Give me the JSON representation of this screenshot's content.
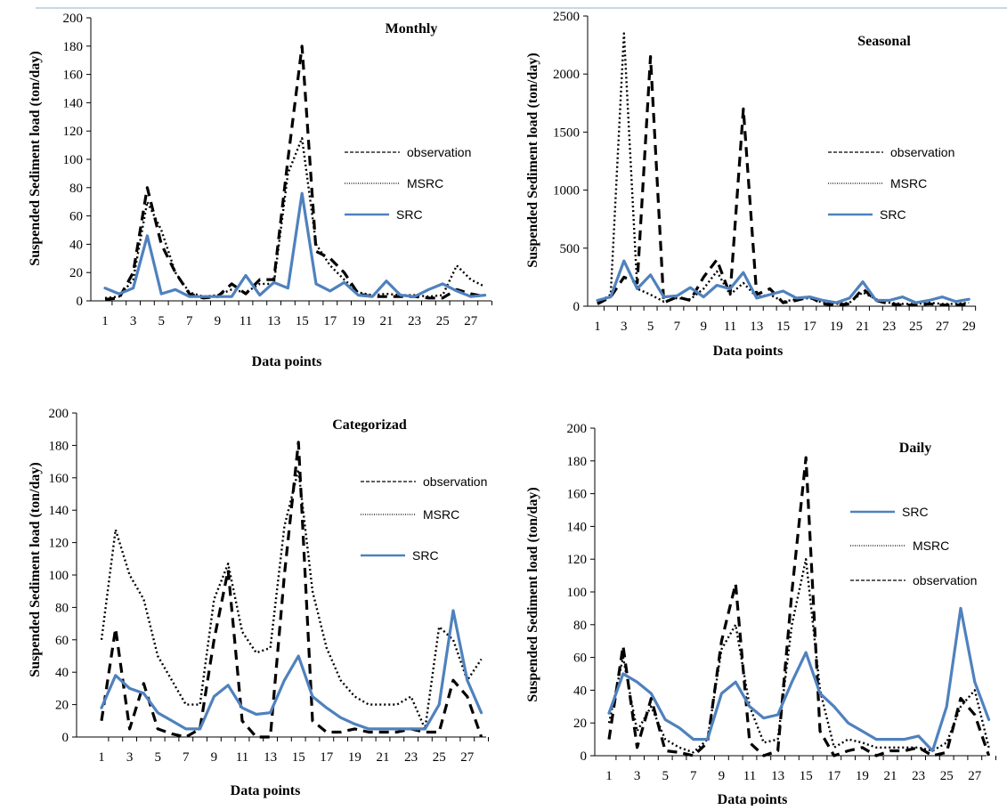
{
  "colors": {
    "observation": "#000000",
    "msrc": "#000000",
    "src": "#4f81bd"
  },
  "chart_data": [
    {
      "type": "line",
      "title": "Monthly",
      "xlabel": "Data points",
      "ylabel": "Suspended Sediment load (ton/day)",
      "ylim": [
        0,
        200
      ],
      "yticks": [
        0,
        20,
        40,
        60,
        80,
        100,
        120,
        140,
        160,
        180,
        200
      ],
      "xticks": [
        1,
        3,
        5,
        7,
        9,
        11,
        13,
        15,
        17,
        19,
        21,
        23,
        25,
        27
      ],
      "x": [
        1,
        2,
        3,
        4,
        5,
        6,
        7,
        8,
        9,
        10,
        11,
        12,
        13,
        14,
        15,
        16,
        17,
        18,
        19,
        20,
        21,
        22,
        23,
        24,
        25,
        26,
        27,
        28
      ],
      "legend": [
        "observation",
        "MSRC",
        "SRC"
      ],
      "series": [
        {
          "name": "observation",
          "style": "dashed",
          "values": [
            1,
            2,
            20,
            80,
            40,
            20,
            5,
            2,
            3,
            12,
            5,
            15,
            15,
            100,
            180,
            35,
            30,
            20,
            5,
            3,
            3,
            3,
            3,
            2,
            2,
            8,
            5,
            3
          ]
        },
        {
          "name": "MSRC",
          "style": "dotted",
          "values": [
            2,
            3,
            15,
            70,
            50,
            20,
            6,
            3,
            4,
            8,
            6,
            12,
            12,
            90,
            115,
            40,
            25,
            15,
            6,
            4,
            5,
            4,
            4,
            3,
            4,
            25,
            15,
            10
          ]
        },
        {
          "name": "SRC",
          "style": "solid",
          "values": [
            9,
            5,
            9,
            46,
            5,
            8,
            3,
            3,
            3,
            3,
            18,
            4,
            13,
            9,
            76,
            12,
            7,
            13,
            4,
            3,
            14,
            4,
            3,
            8,
            12,
            7,
            3,
            4
          ]
        }
      ]
    },
    {
      "type": "line",
      "title": "Seasonal",
      "xlabel": "Data points",
      "ylabel": "Suspended Sediment load (ton/day)",
      "ylim": [
        0,
        2500
      ],
      "yticks": [
        0,
        500,
        1000,
        1500,
        2000,
        2500
      ],
      "xticks": [
        1,
        3,
        5,
        7,
        9,
        11,
        13,
        15,
        17,
        19,
        21,
        23,
        25,
        27,
        29
      ],
      "x": [
        1,
        2,
        3,
        4,
        5,
        6,
        7,
        8,
        9,
        10,
        11,
        12,
        13,
        14,
        15,
        16,
        17,
        18,
        19,
        20,
        21,
        22,
        23,
        24,
        25,
        26,
        27,
        28,
        29
      ],
      "legend": [
        "observation",
        "MSRC",
        "SRC"
      ],
      "series": [
        {
          "name": "observation",
          "style": "dashed",
          "values": [
            20,
            80,
            250,
            200,
            2150,
            30,
            80,
            50,
            250,
            400,
            100,
            1700,
            100,
            150,
            30,
            50,
            80,
            20,
            10,
            20,
            150,
            50,
            20,
            10,
            10,
            20,
            10,
            10,
            20
          ]
        },
        {
          "name": "MSRC",
          "style": "dotted",
          "values": [
            30,
            100,
            2350,
            150,
            100,
            40,
            70,
            60,
            150,
            300,
            100,
            200,
            80,
            100,
            40,
            60,
            70,
            30,
            20,
            30,
            120,
            60,
            30,
            20,
            20,
            30,
            20,
            20,
            30
          ]
        },
        {
          "name": "SRC",
          "style": "solid",
          "values": [
            50,
            80,
            390,
            150,
            270,
            80,
            90,
            160,
            80,
            180,
            150,
            290,
            70,
            100,
            130,
            70,
            80,
            50,
            30,
            70,
            210,
            50,
            50,
            80,
            30,
            50,
            80,
            40,
            60
          ]
        }
      ]
    },
    {
      "type": "line",
      "title": "Categorizad",
      "xlabel": "Data points",
      "ylabel": "Suspended Sediment load (ton/day)",
      "ylim": [
        0,
        200
      ],
      "yticks": [
        0,
        20,
        40,
        60,
        80,
        100,
        120,
        140,
        160,
        180,
        200
      ],
      "xticks": [
        1,
        3,
        5,
        7,
        9,
        11,
        13,
        15,
        17,
        19,
        21,
        23,
        25,
        27
      ],
      "x": [
        1,
        2,
        3,
        4,
        5,
        6,
        7,
        8,
        9,
        10,
        11,
        12,
        13,
        14,
        15,
        16,
        17,
        18,
        19,
        20,
        21,
        22,
        23,
        24,
        25,
        26,
        27,
        28
      ],
      "legend": [
        "observation",
        "MSRC",
        "SRC"
      ],
      "series": [
        {
          "name": "observation",
          "style": "dashed",
          "values": [
            10,
            67,
            5,
            33,
            5,
            2,
            0,
            5,
            60,
            103,
            10,
            0,
            0,
            100,
            182,
            10,
            3,
            3,
            5,
            3,
            3,
            3,
            5,
            3,
            3,
            35,
            25,
            0
          ]
        },
        {
          "name": "MSRC",
          "style": "dotted",
          "values": [
            60,
            128,
            100,
            85,
            50,
            35,
            20,
            20,
            85,
            107,
            65,
            52,
            55,
            130,
            165,
            90,
            55,
            35,
            25,
            20,
            20,
            20,
            25,
            5,
            68,
            60,
            35,
            48
          ]
        },
        {
          "name": "SRC",
          "style": "solid",
          "values": [
            18,
            38,
            30,
            27,
            15,
            10,
            5,
            5,
            25,
            32,
            18,
            14,
            15,
            35,
            50,
            25,
            18,
            12,
            8,
            5,
            5,
            5,
            5,
            5,
            20,
            78,
            35,
            15
          ]
        }
      ]
    },
    {
      "type": "line",
      "title": "Daily",
      "xlabel": "Data points",
      "ylabel": "Suspended Sediment load (ton/day)",
      "ylim": [
        0,
        200
      ],
      "yticks": [
        0,
        20,
        40,
        60,
        80,
        100,
        120,
        140,
        160,
        180,
        200
      ],
      "xticks": [
        1,
        3,
        5,
        7,
        9,
        11,
        13,
        15,
        17,
        19,
        21,
        23,
        25,
        27
      ],
      "x": [
        1,
        2,
        3,
        4,
        5,
        6,
        7,
        8,
        9,
        10,
        11,
        12,
        13,
        14,
        15,
        16,
        17,
        18,
        19,
        20,
        21,
        22,
        23,
        24,
        25,
        26,
        27,
        28
      ],
      "legend": [
        "SRC",
        "MSRC",
        "observation"
      ],
      "series": [
        {
          "name": "SRC",
          "style": "solid",
          "values": [
            26,
            50,
            45,
            38,
            22,
            17,
            10,
            10,
            38,
            45,
            30,
            23,
            25,
            45,
            63,
            38,
            30,
            20,
            15,
            10,
            10,
            10,
            12,
            3,
            30,
            90,
            45,
            22
          ]
        },
        {
          "name": "MSRC",
          "style": "dotted",
          "values": [
            20,
            60,
            15,
            30,
            10,
            5,
            2,
            10,
            65,
            80,
            30,
            8,
            10,
            80,
            120,
            40,
            5,
            10,
            8,
            5,
            5,
            5,
            5,
            3,
            8,
            30,
            40,
            5
          ]
        },
        {
          "name": "observation",
          "style": "dashed",
          "values": [
            10,
            67,
            5,
            35,
            3,
            2,
            0,
            8,
            70,
            105,
            8,
            0,
            3,
            100,
            182,
            15,
            0,
            3,
            5,
            0,
            3,
            3,
            5,
            0,
            2,
            35,
            25,
            0
          ]
        }
      ]
    }
  ]
}
